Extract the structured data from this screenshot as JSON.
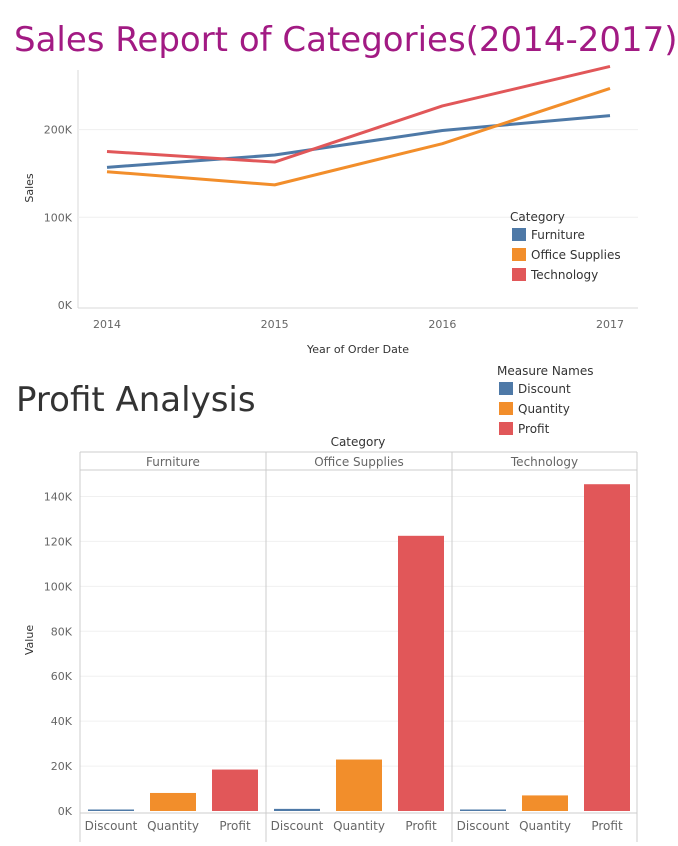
{
  "report": {
    "title": "Sales Report of Categories(2014-2017)",
    "profit_title": "Profit Analysis"
  },
  "chart_data": [
    {
      "type": "line",
      "xlabel": "Year of Order Date",
      "ylabel": "Sales",
      "x": [
        "2014",
        "2015",
        "2016",
        "2017"
      ],
      "yticks": [
        "0K",
        "100K",
        "200K"
      ],
      "ylim": [
        0,
        260000
      ],
      "legend_title": "Category",
      "legend_position": "right",
      "series": [
        {
          "name": "Furniture",
          "color": "#4e79a7",
          "values": [
            157000,
            171000,
            199000,
            216000
          ]
        },
        {
          "name": "Office Supplies",
          "color": "#f28e2b",
          "values": [
            152000,
            137000,
            184000,
            247000
          ]
        },
        {
          "name": "Technology",
          "color": "#e15759",
          "values": [
            175000,
            163000,
            227000,
            272000
          ]
        }
      ],
      "grid": true
    },
    {
      "type": "bar",
      "facet_title": "Category",
      "facets": [
        "Furniture",
        "Office Supplies",
        "Technology"
      ],
      "categories": [
        "Discount",
        "Quantity",
        "Profit"
      ],
      "ylabel": "Value",
      "yticks": [
        "0K",
        "20K",
        "40K",
        "60K",
        "80K",
        "100K",
        "120K",
        "140K"
      ],
      "ylim": [
        0,
        150000
      ],
      "legend_title": "Measure Names",
      "legend_position": "top-right",
      "series": [
        {
          "name": "Discount",
          "color": "#4e79a7",
          "values": [
            369.1,
            947.8,
            133.2
          ]
        },
        {
          "name": "Quantity",
          "color": "#f28e2b",
          "values": [
            8028,
            22906,
            6939
          ]
        },
        {
          "name": "Profit",
          "color": "#e15759",
          "values": [
            18451,
            122491,
            145455
          ]
        }
      ],
      "grid": true
    }
  ]
}
